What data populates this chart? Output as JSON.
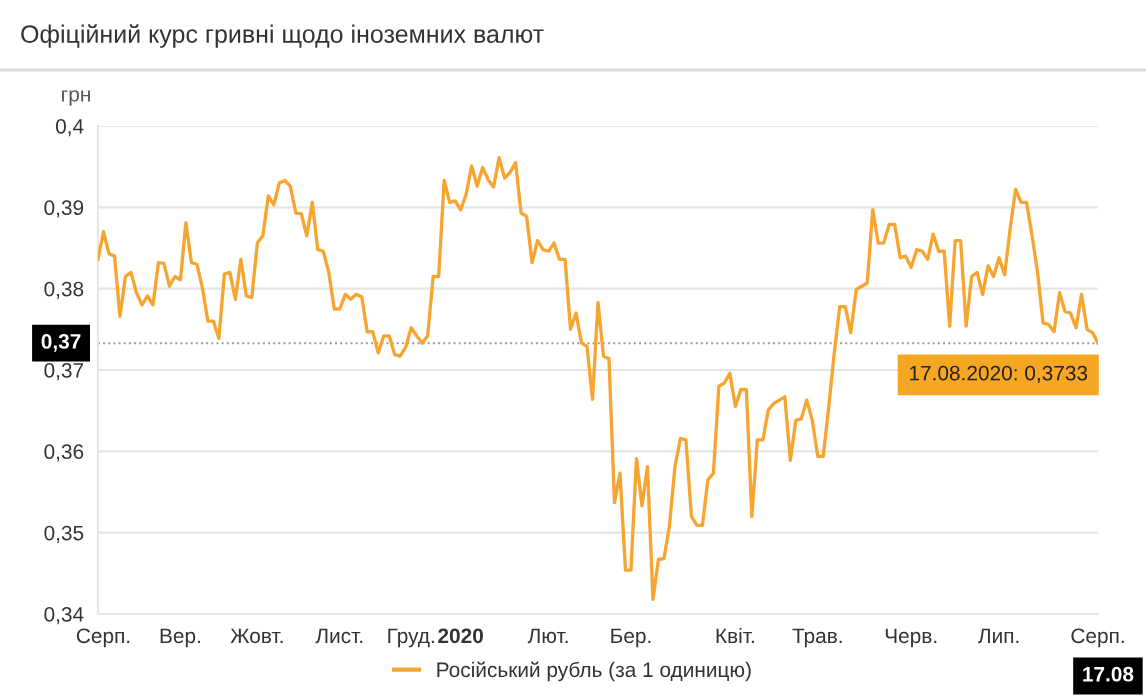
{
  "chart_data": {
    "type": "line",
    "title": "Офіційний курс гривні щодо іноземних валют",
    "ylabel": "грн",
    "categories": [
      null,
      "Серп.",
      null,
      null,
      null,
      null,
      null,
      null,
      null,
      null,
      null,
      null,
      null,
      null,
      null,
      "Вер.",
      null,
      null,
      null,
      null,
      null,
      null,
      null,
      null,
      null,
      null,
      null,
      null,
      null,
      "Жовт.",
      null,
      null,
      null,
      null,
      null,
      null,
      null,
      null,
      null,
      null,
      null,
      null,
      null,
      null,
      "Лист.",
      null,
      null,
      null,
      null,
      null,
      null,
      null,
      null,
      null,
      null,
      null,
      null,
      "Груд.",
      null,
      null,
      null,
      null,
      null,
      null,
      null,
      null,
      "2020",
      null,
      null,
      null,
      null,
      null,
      null,
      null,
      null,
      null,
      null,
      null,
      null,
      null,
      null,
      null,
      "Лют.",
      null,
      null,
      null,
      null,
      null,
      null,
      null,
      null,
      null,
      null,
      null,
      null,
      null,
      null,
      "Бер.",
      null,
      null,
      null,
      null,
      null,
      null,
      null,
      null,
      null,
      null,
      null,
      null,
      null,
      null,
      null,
      null,
      null,
      null,
      "Квіт.",
      null,
      null,
      null,
      null,
      null,
      null,
      null,
      null,
      null,
      null,
      null,
      null,
      null,
      null,
      "Трав.",
      null,
      null,
      null,
      null,
      null,
      null,
      null,
      null,
      null,
      null,
      null,
      null,
      null,
      null,
      null,
      null,
      "Черв.",
      null,
      null,
      null,
      null,
      null,
      null,
      null,
      null,
      null,
      null,
      null,
      null,
      null,
      null,
      null,
      "Лип.",
      null,
      null,
      null,
      null,
      null,
      null,
      null,
      null,
      null,
      null,
      null,
      null,
      null,
      null,
      null,
      null,
      null,
      "Серп."
    ],
    "series": [
      {
        "name": "Російський рубль (за 1 одиницю)",
        "color": "#f7a531",
        "values": [
          0.3836,
          0.387,
          0.3843,
          0.384,
          0.3766,
          0.3815,
          0.382,
          0.3795,
          0.378,
          0.3791,
          0.378,
          0.3832,
          0.3831,
          0.3803,
          0.3815,
          0.3811,
          0.3881,
          0.3832,
          0.383,
          0.3801,
          0.376,
          0.376,
          0.3739,
          0.3818,
          0.382,
          0.3787,
          0.3836,
          0.3791,
          0.3789,
          0.3856,
          0.3865,
          0.3914,
          0.3903,
          0.393,
          0.3933,
          0.3926,
          0.3893,
          0.3892,
          0.3865,
          0.3906,
          0.3848,
          0.3846,
          0.382,
          0.3775,
          0.3775,
          0.3793,
          0.3787,
          0.3793,
          0.379,
          0.3747,
          0.3747,
          0.3721,
          0.3742,
          0.3742,
          0.3719,
          0.3717,
          0.3728,
          0.3752,
          0.3742,
          0.3733,
          0.3742,
          0.3815,
          0.3815,
          0.3933,
          0.3906,
          0.3908,
          0.3897,
          0.3916,
          0.3951,
          0.3926,
          0.3949,
          0.3934,
          0.3925,
          0.3961,
          0.3936,
          0.3943,
          0.3955,
          0.3893,
          0.3889,
          0.3832,
          0.3859,
          0.3848,
          0.3846,
          0.3856,
          0.3836,
          0.3836,
          0.375,
          0.377,
          0.3733,
          0.3729,
          0.3664,
          0.3783,
          0.3717,
          0.3714,
          0.3537,
          0.3573,
          0.3454,
          0.3454,
          0.3591,
          0.3533,
          0.3581,
          0.3418,
          0.3467,
          0.3468,
          0.3508,
          0.3581,
          0.3616,
          0.3614,
          0.352,
          0.3509,
          0.3509,
          0.3565,
          0.3573,
          0.368,
          0.3684,
          0.3696,
          0.3655,
          0.3676,
          0.3676,
          0.352,
          0.3614,
          0.3614,
          0.3651,
          0.3659,
          0.3663,
          0.3667,
          0.3589,
          0.3638,
          0.364,
          0.3663,
          0.3638,
          0.3594,
          0.3594,
          0.3655,
          0.3721,
          0.3778,
          0.3778,
          0.3746,
          0.3799,
          0.3803,
          0.3807,
          0.3897,
          0.3856,
          0.3856,
          0.3879,
          0.3879,
          0.3838,
          0.384,
          0.3826,
          0.3848,
          0.3846,
          0.3836,
          0.3867,
          0.3846,
          0.3846,
          0.3754,
          0.3859,
          0.3859,
          0.3754,
          0.3815,
          0.382,
          0.3793,
          0.3828,
          0.3815,
          0.3838,
          0.3817,
          0.3873,
          0.3922,
          0.3906,
          0.3906,
          0.3865,
          0.382,
          0.3758,
          0.3756,
          0.3747,
          0.3795,
          0.3772,
          0.377,
          0.3752,
          0.3793,
          0.375,
          0.3746,
          0.3733
        ]
      }
    ],
    "ylim": [
      0.34,
      0.4
    ],
    "yticks": [
      {
        "value": 0.34,
        "label": "0,34"
      },
      {
        "value": 0.35,
        "label": "0,35"
      },
      {
        "value": 0.36,
        "label": "0,36"
      },
      {
        "value": 0.37,
        "label": "0,37"
      },
      {
        "value": 0.38,
        "label": "0,38"
      },
      {
        "value": 0.39,
        "label": "0,39"
      },
      {
        "value": 0.4,
        "label": "0,4"
      }
    ],
    "grid": "y",
    "legend": "bottom",
    "marker": "none",
    "line_style": "solid",
    "ref_lines": [
      {
        "axis": "y",
        "value": 0.3733,
        "label": "0,37",
        "color": "#999999",
        "line_style": "dotted"
      }
    ],
    "annotations": [
      "17.08.2020: 0,3733",
      "17.08"
    ]
  }
}
